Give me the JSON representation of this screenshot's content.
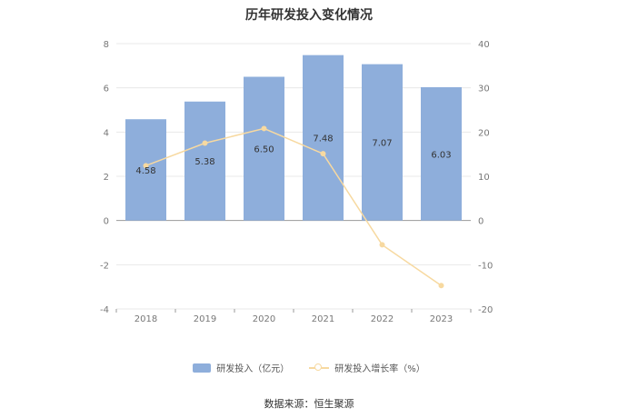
{
  "chart_data": {
    "type": "bar",
    "title": "历年研发投入变化情况",
    "categories": [
      "2018",
      "2019",
      "2020",
      "2021",
      "2022",
      "2023"
    ],
    "series": [
      {
        "name": "研发投入（亿元）",
        "type": "bar",
        "axis": "left",
        "values": [
          4.58,
          5.38,
          6.5,
          7.48,
          7.07,
          6.03
        ],
        "labels": [
          "4.58",
          "5.38",
          "6.50",
          "7.48",
          "7.07",
          "6.03"
        ]
      },
      {
        "name": "研发投入增长率（%）",
        "type": "line",
        "axis": "right",
        "values": [
          12.4,
          17.5,
          20.8,
          15.1,
          -5.5,
          -14.7
        ]
      }
    ],
    "y_left": {
      "min": -4,
      "max": 8,
      "ticks": [
        "-4",
        "-2",
        "0",
        "2",
        "4",
        "6",
        "8"
      ]
    },
    "y_right": {
      "min": -20,
      "max": 40,
      "ticks": [
        "-20",
        "-10",
        "0",
        "10",
        "20",
        "30",
        "40"
      ]
    },
    "grid": true,
    "legend_position": "bottom",
    "colors": {
      "bar": "#8eaedb",
      "line": "#f7d9a0",
      "grid": "#e8e8e8",
      "axis": "#999999",
      "tick_text": "#777777"
    }
  },
  "footer": {
    "source": "数据来源：恒生聚源"
  }
}
